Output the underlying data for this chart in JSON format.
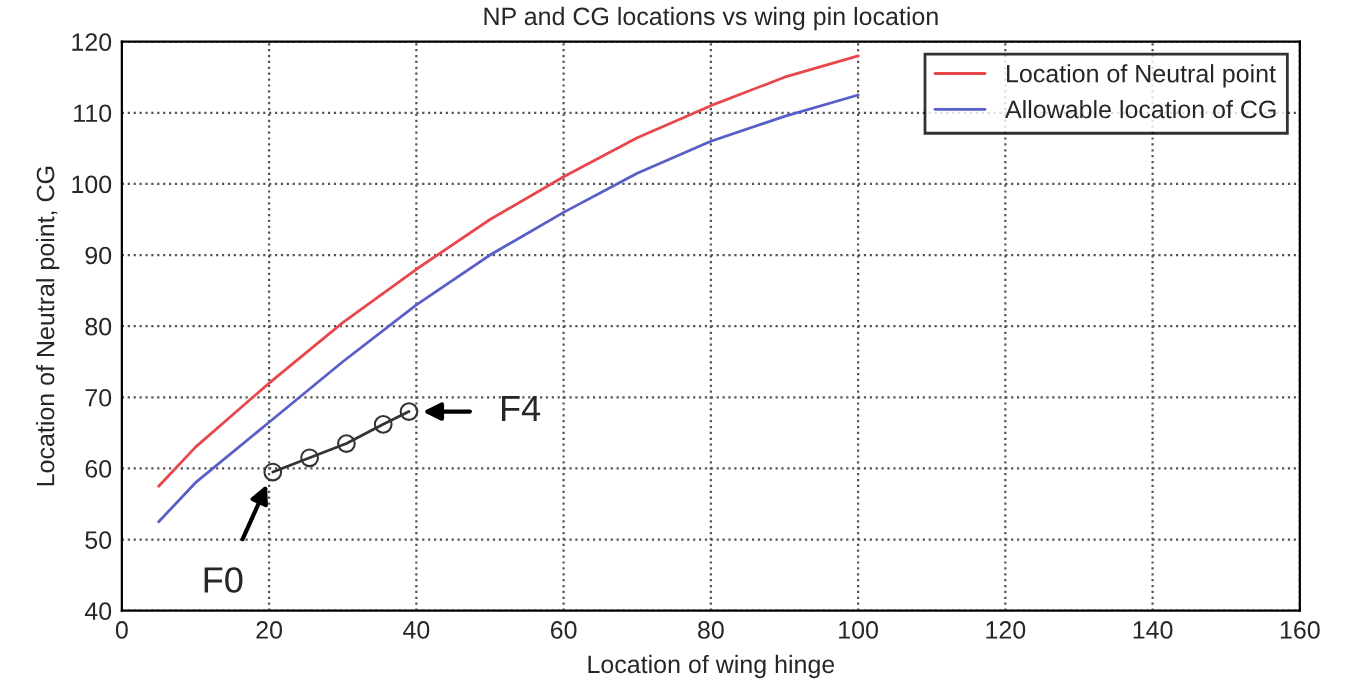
{
  "chart_data": {
    "type": "line",
    "title": "NP and CG locations vs wing pin location",
    "xlabel": "Location of wing hinge",
    "ylabel": "Location of Neutral point, CG",
    "xlim": [
      0,
      160
    ],
    "xticks": [
      0,
      20,
      40,
      60,
      80,
      100,
      120,
      140,
      160
    ],
    "ylim": [
      40,
      120
    ],
    "yticks": [
      40,
      50,
      60,
      70,
      80,
      90,
      100,
      110,
      120
    ],
    "grid": true,
    "legend": "top right",
    "series": [
      {
        "name": "Location of Neutral point",
        "color": "#e8474c",
        "x": [
          5,
          10,
          20,
          30,
          40,
          50,
          60,
          70,
          80,
          90,
          100
        ],
        "values": [
          57.5,
          63,
          72,
          80.5,
          88,
          95,
          101,
          106.5,
          111,
          115,
          118
        ]
      },
      {
        "name": "Allowable location of CG",
        "color": "#5a5fc8",
        "x": [
          5,
          10,
          20,
          30,
          40,
          50,
          60,
          70,
          80,
          90,
          100
        ],
        "values": [
          52.5,
          58,
          66.5,
          75,
          83,
          90,
          96,
          101.5,
          106,
          109.5,
          112.5
        ]
      },
      {
        "color": "#333333",
        "marker": "circle",
        "x": [
          20.5,
          25.5,
          30.5,
          35.5,
          39
        ],
        "values": [
          59.5,
          61.5,
          63.5,
          66.2,
          68
        ]
      }
    ],
    "annotations": [
      {
        "text": "F0",
        "x": 20.5,
        "y": 59.5
      },
      {
        "text": "F4",
        "x": 39,
        "y": 68
      }
    ]
  }
}
